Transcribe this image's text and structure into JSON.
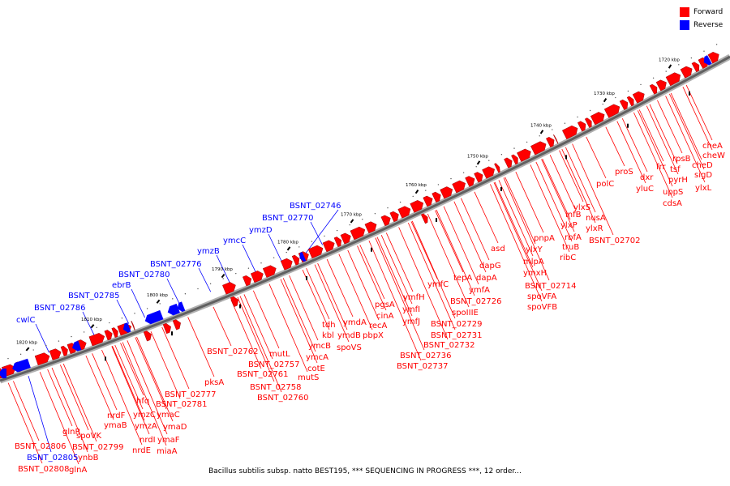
{
  "caption": "Bacillus subtilis subsp. natto BEST195, *** SEQUENCING IN PROGRESS ***, 12 order...",
  "legend": [
    {
      "label": "Forward",
      "color": "#ff0000"
    },
    {
      "label": "Reverse",
      "color": "#0000ff"
    }
  ],
  "colors": {
    "forward": "#ff0000",
    "reverse": "#0000ff",
    "backbone": "#808080"
  },
  "scale_ticks": [
    "1720 kbp",
    "1730 kbp",
    "1740 kbp",
    "1750 kbp",
    "1760 kbp",
    "1770 kbp",
    "1780 kbp",
    "1790 kbp",
    "1800 kbp",
    "1810 kbp",
    "1820 kbp"
  ],
  "forward_labels": [
    "cheA",
    "cheW",
    "rpsB",
    "cheD",
    "frr",
    "tsf",
    "sigD",
    "dxr",
    "pyrH",
    "ylxL",
    "proS",
    "yluC",
    "uppS",
    "cdsA",
    "polC",
    "ylxS",
    "nusA",
    "infB",
    "ylxR",
    "ylxP",
    "rbfA",
    "BSNT_02702",
    "pnpA",
    "truB",
    "ribC",
    "ylxY",
    "asd",
    "mlpA",
    "dapG",
    "ymxH",
    "tepA",
    "dapA",
    "BSNT_02714",
    "ymfC",
    "ymfA",
    "spoVFA",
    "BSNT_02726",
    "spoVFB",
    "spoIIIE",
    "ymfH",
    "BSNT_02729",
    "pgsA",
    "ymfI",
    "BSNT_02731",
    "cinA",
    "ymfJ",
    "BSNT_02732",
    "recA",
    "BSNT_02736",
    "tdh",
    "ymdA",
    "pbpX",
    "BSNT_02737",
    "kbl",
    "ymdB",
    "spoVS",
    "ymcB",
    "ymcA",
    "cotE",
    "mutS",
    "mutL",
    "BSNT_02757",
    "BSNT_02761",
    "BSNT_02758",
    "BSNT_02760",
    "BSNT_02762",
    "pksA",
    "BSNT_02777",
    "BSNT_02781",
    "hfq",
    "ymaC",
    "ymzC",
    "ymzA",
    "ymaD",
    "nrdF",
    "ymaB",
    "nrdI",
    "ymaF",
    "nrdE",
    "miaA",
    "spoVK",
    "BSNT_02799",
    "glnR",
    "ynbB",
    "BSNT_02806",
    "BSNT_02808",
    "glnA"
  ],
  "reverse_labels": [
    "BSNT_02746",
    "BSNT_02770",
    "ymzD",
    "ymcC",
    "ymzB",
    "BSNT_02776",
    "BSNT_02780",
    "ebrB",
    "BSNT_02785",
    "BSNT_02786",
    "cwlC",
    "BSNT_02805"
  ]
}
